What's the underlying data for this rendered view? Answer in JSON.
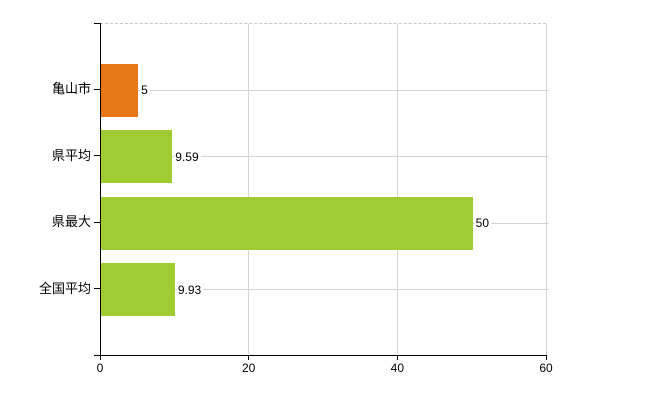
{
  "chart_data": {
    "type": "bar",
    "orientation": "horizontal",
    "title": "",
    "xlabel": "",
    "ylabel": "",
    "categories": [
      "亀山市",
      "県平均",
      "県最大",
      "全国平均"
    ],
    "values": [
      5,
      9.59,
      50,
      9.93
    ],
    "value_labels": [
      "5",
      "9.59",
      "50",
      "9.93"
    ],
    "series": [
      {
        "name": "",
        "values": [
          5,
          9.59,
          50,
          9.93
        ]
      }
    ],
    "bar_colors": [
      "#e67817",
      "#a0cc33",
      "#a0cc33",
      "#a0cc33"
    ],
    "xlim": [
      0,
      60
    ],
    "x_ticks": [
      0,
      20,
      40,
      60
    ],
    "x_tick_labels": [
      "0",
      "20",
      "40",
      "60"
    ],
    "grid": true,
    "legend": false
  },
  "colors": {
    "background": "#ffffff",
    "axis": "#000000",
    "gridline": "#d4d4d4",
    "top_border_dashed": "#c8c8c8",
    "text": "#000000",
    "highlight_bar": "#e67817",
    "normal_bar": "#a0cc33"
  }
}
